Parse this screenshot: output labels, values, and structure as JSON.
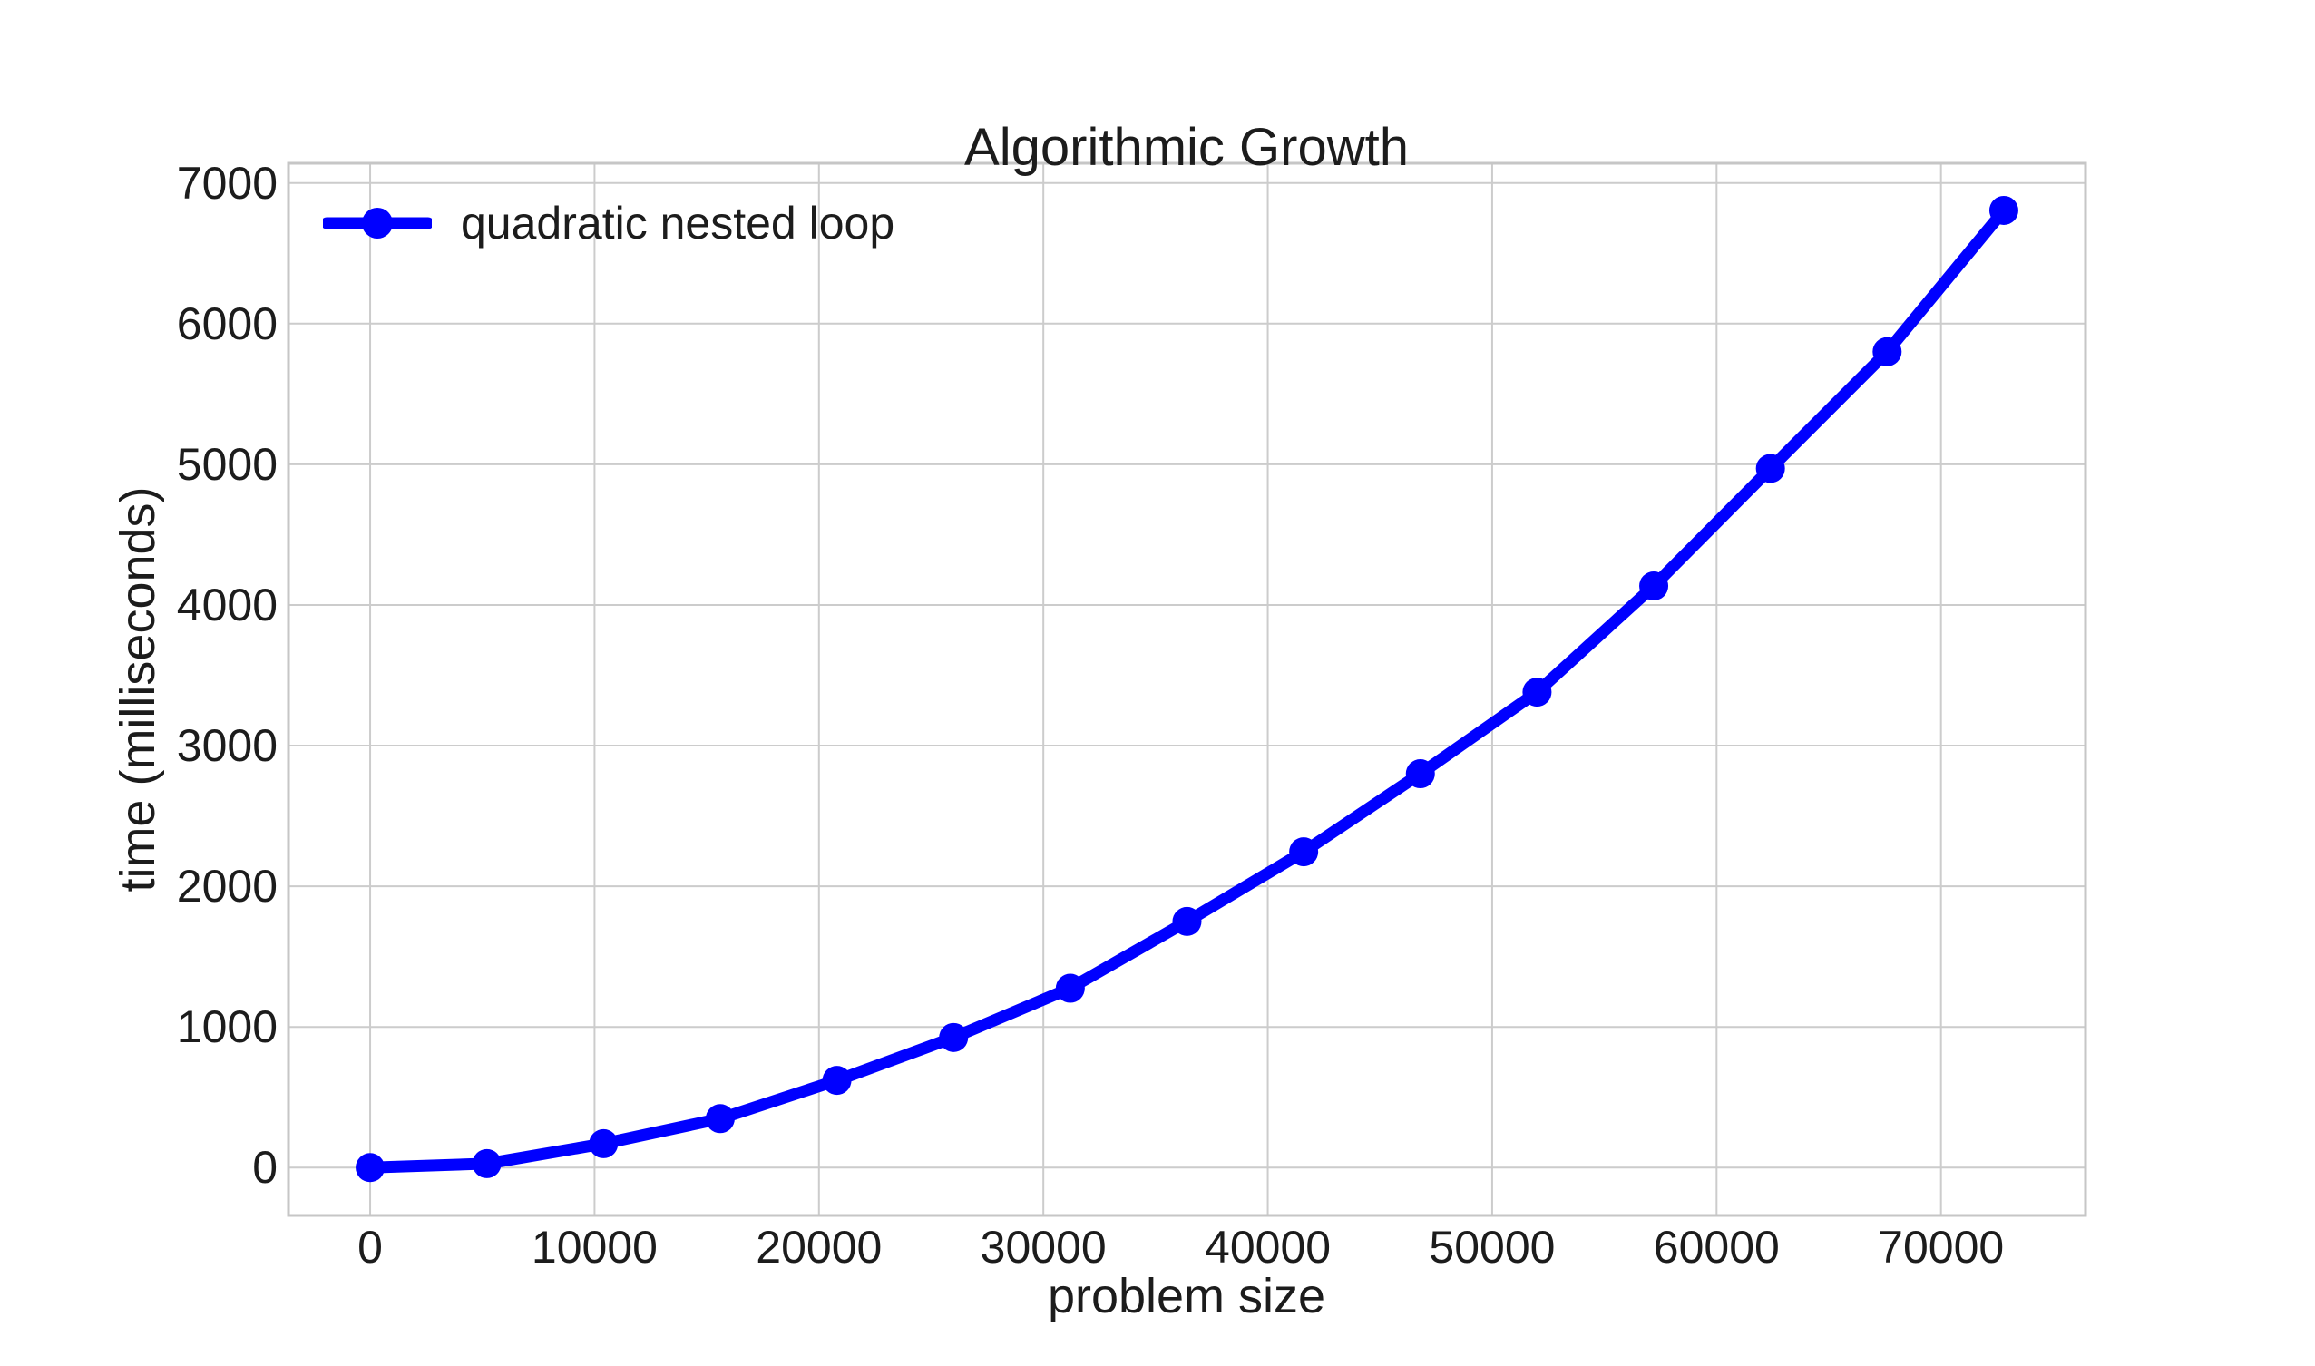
{
  "chart_data": {
    "type": "line",
    "title": "Algorithmic Growth",
    "xlabel": "problem size",
    "ylabel": "time (milliseconds)",
    "series": [
      {
        "name": "quadratic nested loop",
        "color": "#0000ff",
        "marker": "circle",
        "x": [
          0,
          5200,
          10400,
          15600,
          20800,
          26000,
          31200,
          36400,
          41600,
          46800,
          52000,
          57200,
          62400,
          67600,
          72800
        ],
        "y": [
          0,
          28,
          170,
          348,
          620,
          925,
          1275,
          1750,
          2245,
          2800,
          3380,
          4135,
          4970,
          5800,
          6805
        ]
      }
    ],
    "xticks": [
      0,
      10000,
      20000,
      30000,
      40000,
      50000,
      60000,
      70000
    ],
    "yticks": [
      0,
      1000,
      2000,
      3000,
      4000,
      5000,
      6000,
      7000
    ],
    "xlim": [
      -3640,
      76440
    ],
    "ylim": [
      -340,
      7140
    ],
    "grid": true,
    "legend_position": "upper left",
    "colors": {
      "background": "#ffffff",
      "grid": "#cccccc",
      "spine": "#c6c6c6",
      "text": "#1c1c1c"
    }
  }
}
